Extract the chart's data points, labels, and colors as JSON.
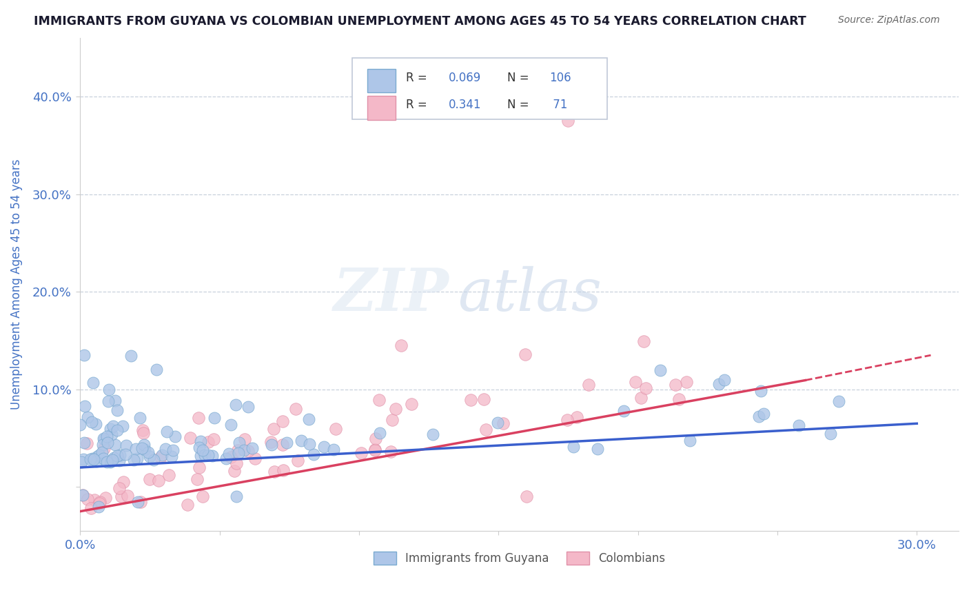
{
  "title": "IMMIGRANTS FROM GUYANA VS COLOMBIAN UNEMPLOYMENT AMONG AGES 45 TO 54 YEARS CORRELATION CHART",
  "source": "Source: ZipAtlas.com",
  "ylabel": "Unemployment Among Ages 45 to 54 years",
  "xlim": [
    0.0,
    0.315
  ],
  "ylim": [
    -0.045,
    0.46
  ],
  "xticks": [
    0.0,
    0.05,
    0.1,
    0.15,
    0.2,
    0.25,
    0.3
  ],
  "yticks": [
    0.0,
    0.1,
    0.2,
    0.3,
    0.4
  ],
  "xtick_labels": [
    "0.0%",
    "",
    "",
    "",
    "",
    "",
    "30.0%"
  ],
  "ytick_labels": [
    "",
    "10.0%",
    "20.0%",
    "30.0%",
    "40.0%"
  ],
  "blue_scatter_color": "#aec6e8",
  "blue_edge_color": "#7aaad0",
  "pink_scatter_color": "#f4b8c8",
  "pink_edge_color": "#e090a8",
  "blue_line_color": "#3a5fcd",
  "pink_line_color": "#d94060",
  "watermark_zip_color": "#d0d8e8",
  "watermark_atlas_color": "#b8c8e0",
  "background_color": "#ffffff",
  "grid_color": "#c8d0dc",
  "title_color": "#1a1a2e",
  "tick_color": "#4472c4",
  "legend_border_color": "#c0c8d8",
  "source_color": "#666666"
}
